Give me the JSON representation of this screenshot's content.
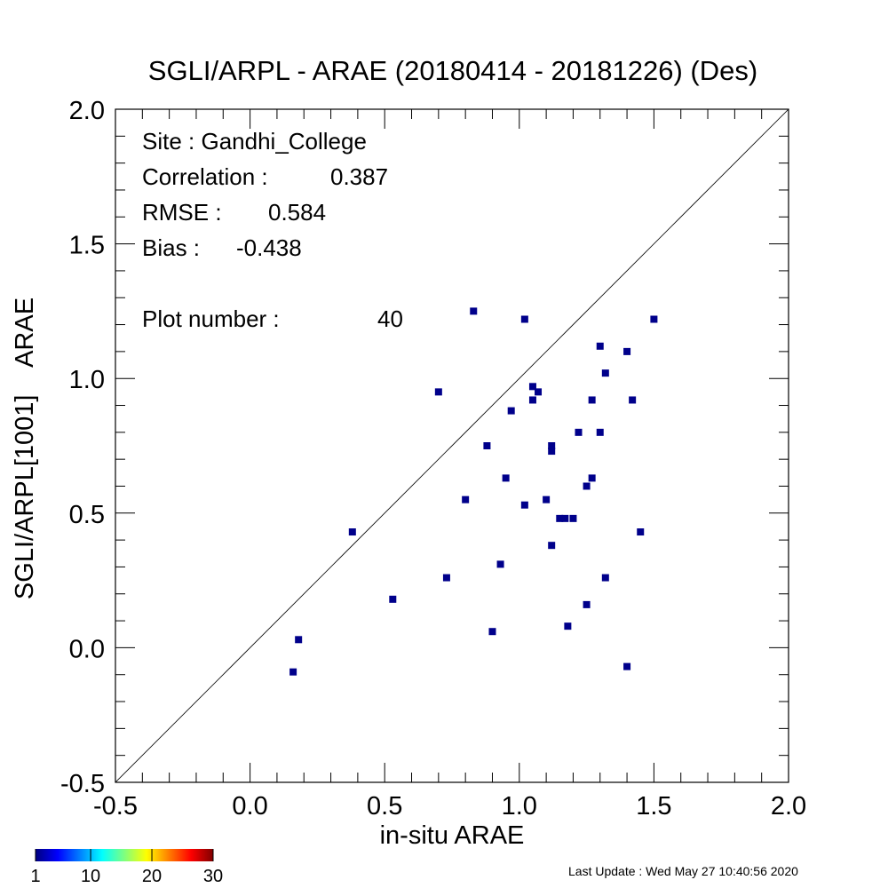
{
  "chart_data": {
    "type": "scatter",
    "title": "SGLI/ARPL - ARAE (20180414 - 20181226) (Des)",
    "xlabel": "in-situ ARAE",
    "ylabel": "SGLI/ARPL[1001]    ARAE",
    "xlim": [
      -0.5,
      2.0
    ],
    "ylim": [
      -0.5,
      2.0
    ],
    "xticks": [
      "-0.5",
      "0.0",
      "0.5",
      "1.0",
      "1.5",
      "2.0"
    ],
    "yticks": [
      "-0.5",
      "0.0",
      "0.5",
      "1.0",
      "1.5",
      "2.0"
    ],
    "one_to_one_line": true,
    "marker_color": "#00008b",
    "points": [
      {
        "x": 0.16,
        "y": -0.09
      },
      {
        "x": 0.18,
        "y": 0.03
      },
      {
        "x": 0.38,
        "y": 0.43
      },
      {
        "x": 0.53,
        "y": 0.18
      },
      {
        "x": 0.7,
        "y": 0.95
      },
      {
        "x": 0.73,
        "y": 0.26
      },
      {
        "x": 0.8,
        "y": 0.55
      },
      {
        "x": 0.83,
        "y": 1.25
      },
      {
        "x": 0.88,
        "y": 0.75
      },
      {
        "x": 0.9,
        "y": 0.06
      },
      {
        "x": 0.93,
        "y": 0.31
      },
      {
        "x": 0.95,
        "y": 0.63
      },
      {
        "x": 0.97,
        "y": 0.88
      },
      {
        "x": 1.02,
        "y": 1.22
      },
      {
        "x": 1.02,
        "y": 0.53
      },
      {
        "x": 1.05,
        "y": 0.97
      },
      {
        "x": 1.05,
        "y": 0.92
      },
      {
        "x": 1.07,
        "y": 0.95
      },
      {
        "x": 1.1,
        "y": 0.55
      },
      {
        "x": 1.12,
        "y": 0.75
      },
      {
        "x": 1.12,
        "y": 0.73
      },
      {
        "x": 1.12,
        "y": 0.38
      },
      {
        "x": 1.15,
        "y": 0.48
      },
      {
        "x": 1.17,
        "y": 0.48
      },
      {
        "x": 1.18,
        "y": 0.08
      },
      {
        "x": 1.2,
        "y": 0.48
      },
      {
        "x": 1.22,
        "y": 0.8
      },
      {
        "x": 1.25,
        "y": 0.6
      },
      {
        "x": 1.25,
        "y": 0.16
      },
      {
        "x": 1.27,
        "y": 0.92
      },
      {
        "x": 1.27,
        "y": 0.63
      },
      {
        "x": 1.3,
        "y": 1.12
      },
      {
        "x": 1.3,
        "y": 0.8
      },
      {
        "x": 1.32,
        "y": 1.02
      },
      {
        "x": 1.32,
        "y": 0.26
      },
      {
        "x": 1.4,
        "y": 1.1
      },
      {
        "x": 1.4,
        "y": -0.07
      },
      {
        "x": 1.42,
        "y": 0.92
      },
      {
        "x": 1.45,
        "y": 0.43
      },
      {
        "x": 1.5,
        "y": 1.22
      }
    ],
    "annotations": {
      "site": "Site : Gandhi_College",
      "correlation_label": "Correlation :",
      "correlation_value": "0.387",
      "rmse_label": "RMSE :",
      "rmse_value": "0.584",
      "bias_label": "Bias :",
      "bias_value": "-0.438",
      "plot_number_label": "Plot number :",
      "plot_number_value": "40"
    },
    "colorbar": {
      "ticks": [
        "1",
        "10",
        "20",
        "30"
      ],
      "colormap": "jet",
      "colors": [
        "#00007f",
        "#0000ff",
        "#007fff",
        "#00ffff",
        "#7fff7f",
        "#ffff00",
        "#ff7f00",
        "#ff0000",
        "#7f0000"
      ]
    }
  },
  "footer": {
    "last_update": "Last Update : Wed May 27 10:40:56 2020"
  }
}
